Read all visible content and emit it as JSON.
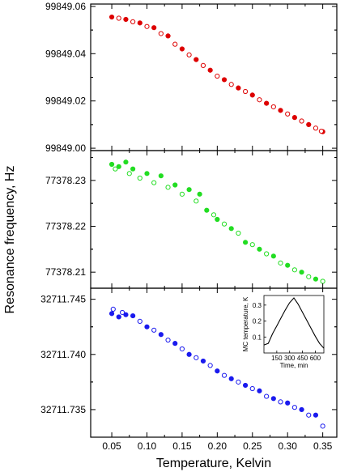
{
  "figure": {
    "ylabel": "Resonance frequency, Hz",
    "xlabel": "Temperature, Kelvin"
  },
  "chart_data": [
    {
      "type": "scatter",
      "panel": "top",
      "xlim": [
        0.02,
        0.37
      ],
      "ylim": [
        99848.999,
        99849.061
      ],
      "x_ticks": [
        "0.05",
        "0.10",
        "0.15",
        "0.20",
        "0.25",
        "0.30",
        "0.35"
      ],
      "y_ticks": [
        {
          "value": 99849.0,
          "label": "99849.00"
        },
        {
          "value": 99849.02,
          "label": "99849.02"
        },
        {
          "value": 99849.04,
          "label": "99849.04"
        },
        {
          "value": 99849.06,
          "label": "99849.06"
        }
      ],
      "color": "#dd0000",
      "series": [
        {
          "style": "filled",
          "points": [
            [
              0.05,
              99849.0555
            ],
            [
              0.07,
              99849.0545
            ],
            [
              0.09,
              99849.053
            ],
            [
              0.11,
              99849.051
            ],
            [
              0.13,
              99849.0475
            ],
            [
              0.15,
              99849.042
            ],
            [
              0.17,
              99849.0375
            ],
            [
              0.19,
              99849.033
            ],
            [
              0.21,
              99849.029
            ],
            [
              0.23,
              99849.0255
            ],
            [
              0.25,
              99849.0225
            ],
            [
              0.27,
              99849.019
            ],
            [
              0.29,
              99849.016
            ],
            [
              0.31,
              99849.013
            ],
            [
              0.33,
              99849.01
            ],
            [
              0.35,
              99849.007
            ]
          ]
        },
        {
          "style": "open",
          "points": [
            [
              0.06,
              99849.055
            ],
            [
              0.08,
              99849.0535
            ],
            [
              0.1,
              99849.0515
            ],
            [
              0.12,
              99849.0485
            ],
            [
              0.14,
              99849.044
            ],
            [
              0.16,
              99849.0395
            ],
            [
              0.18,
              99849.035
            ],
            [
              0.2,
              99849.0305
            ],
            [
              0.22,
              99849.027
            ],
            [
              0.24,
              99849.024
            ],
            [
              0.26,
              99849.0205
            ],
            [
              0.28,
              99849.0175
            ],
            [
              0.3,
              99849.0145
            ],
            [
              0.32,
              99849.0115
            ],
            [
              0.34,
              99849.0085
            ],
            [
              0.348,
              99849.0072
            ]
          ]
        }
      ]
    },
    {
      "type": "scatter",
      "panel": "middle",
      "xlim": [
        0.02,
        0.37
      ],
      "ylim": [
        77378.2065,
        77378.2365
      ],
      "x_ticks": [
        "0.05",
        "0.10",
        "0.15",
        "0.20",
        "0.25",
        "0.30",
        "0.35"
      ],
      "y_ticks": [
        {
          "value": 77378.21,
          "label": "77378.21"
        },
        {
          "value": 77378.22,
          "label": "77378.22"
        },
        {
          "value": 77378.23,
          "label": "77378.23"
        }
      ],
      "color": "#22dd22",
      "series": [
        {
          "style": "filled",
          "points": [
            [
              0.05,
              77378.2335
            ],
            [
              0.06,
              77378.233
            ],
            [
              0.07,
              77378.234
            ],
            [
              0.08,
              77378.2325
            ],
            [
              0.1,
              77378.2315
            ],
            [
              0.12,
              77378.231
            ],
            [
              0.14,
              77378.229
            ],
            [
              0.16,
              77378.228
            ],
            [
              0.175,
              77378.227
            ],
            [
              0.185,
              77378.2235
            ],
            [
              0.2,
              77378.2215
            ],
            [
              0.22,
              77378.2195
            ],
            [
              0.24,
              77378.2165
            ],
            [
              0.26,
              77378.215
            ],
            [
              0.28,
              77378.2135
            ],
            [
              0.3,
              77378.2115
            ],
            [
              0.32,
              77378.21
            ],
            [
              0.34,
              77378.2085
            ]
          ]
        },
        {
          "style": "open",
          "points": [
            [
              0.055,
              77378.2325
            ],
            [
              0.075,
              77378.2315
            ],
            [
              0.09,
              77378.2305
            ],
            [
              0.11,
              77378.2295
            ],
            [
              0.13,
              77378.2285
            ],
            [
              0.15,
              77378.227
            ],
            [
              0.17,
              77378.2255
            ],
            [
              0.195,
              77378.2225
            ],
            [
              0.21,
              77378.2205
            ],
            [
              0.23,
              77378.2185
            ],
            [
              0.25,
              77378.216
            ],
            [
              0.27,
              77378.214
            ],
            [
              0.29,
              77378.212
            ],
            [
              0.31,
              77378.2105
            ],
            [
              0.33,
              77378.209
            ],
            [
              0.35,
              77378.208
            ]
          ]
        }
      ]
    },
    {
      "type": "scatter",
      "panel": "bottom",
      "xlim": [
        0.02,
        0.37
      ],
      "ylim": [
        32711.7325,
        32711.746
      ],
      "x_ticks": [
        "0.05",
        "0.10",
        "0.15",
        "0.20",
        "0.25",
        "0.30",
        "0.35"
      ],
      "y_ticks": [
        {
          "value": 32711.735,
          "label": "32711.735"
        },
        {
          "value": 32711.74,
          "label": "32711.740"
        },
        {
          "value": 32711.745,
          "label": "32711.745"
        }
      ],
      "color": "#1a1aee",
      "series": [
        {
          "style": "filled",
          "points": [
            [
              0.05,
              32711.7437
            ],
            [
              0.06,
              32711.7434
            ],
            [
              0.07,
              32711.7436
            ],
            [
              0.08,
              32711.7435
            ],
            [
              0.1,
              32711.7425
            ],
            [
              0.12,
              32711.7418
            ],
            [
              0.14,
              32711.741
            ],
            [
              0.16,
              32711.74
            ],
            [
              0.18,
              32711.7394
            ],
            [
              0.2,
              32711.7385
            ],
            [
              0.22,
              32711.7378
            ],
            [
              0.24,
              32711.7372
            ],
            [
              0.26,
              32711.7367
            ],
            [
              0.28,
              32711.736
            ],
            [
              0.3,
              32711.7356
            ],
            [
              0.32,
              32711.735
            ],
            [
              0.34,
              32711.7345
            ]
          ]
        },
        {
          "style": "open",
          "points": [
            [
              0.052,
              32711.7441
            ],
            [
              0.065,
              32711.7438
            ],
            [
              0.09,
              32711.743
            ],
            [
              0.11,
              32711.7422
            ],
            [
              0.13,
              32711.7413
            ],
            [
              0.15,
              32711.7405
            ],
            [
              0.17,
              32711.7397
            ],
            [
              0.19,
              32711.739
            ],
            [
              0.21,
              32711.7381
            ],
            [
              0.23,
              32711.7375
            ],
            [
              0.25,
              32711.7369
            ],
            [
              0.27,
              32711.7362
            ],
            [
              0.29,
              32711.7357
            ],
            [
              0.31,
              32711.7352
            ],
            [
              0.33,
              32711.7345
            ],
            [
              0.35,
              32711.7335
            ]
          ]
        }
      ]
    }
  ],
  "inset": {
    "type": "line",
    "xlabel": "Time, min",
    "ylabel": "MC temperature, K",
    "xlim": [
      0,
      700
    ],
    "ylim": [
      0,
      0.36
    ],
    "x_ticks": [
      "150",
      "300",
      "450",
      "600"
    ],
    "y_ticks": [
      "0.1",
      "0.2",
      "0.3"
    ],
    "points": [
      [
        0,
        0.05
      ],
      [
        50,
        0.06
      ],
      [
        100,
        0.12
      ],
      [
        150,
        0.17
      ],
      [
        200,
        0.22
      ],
      [
        250,
        0.27
      ],
      [
        300,
        0.315
      ],
      [
        350,
        0.345
      ],
      [
        400,
        0.305
      ],
      [
        450,
        0.255
      ],
      [
        500,
        0.205
      ],
      [
        550,
        0.155
      ],
      [
        600,
        0.105
      ],
      [
        650,
        0.06
      ],
      [
        700,
        0.03
      ]
    ]
  }
}
